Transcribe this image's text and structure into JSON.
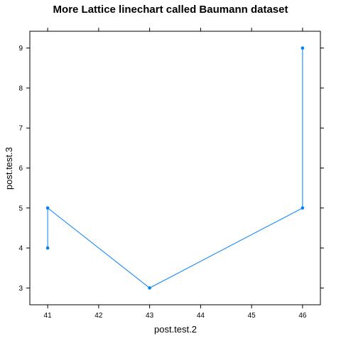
{
  "chart_data": {
    "type": "line",
    "title": "More Lattice linechart called Baumann dataset",
    "xlabel": "post.test.2",
    "ylabel": "post.test.3",
    "xlim": [
      40.65,
      46.35
    ],
    "ylim": [
      2.58,
      9.42
    ],
    "xticks": [
      41,
      42,
      43,
      44,
      45,
      46
    ],
    "yticks": [
      3,
      4,
      5,
      6,
      7,
      8,
      9
    ],
    "grid": false,
    "series": [
      {
        "color": "#0080ff",
        "points": [
          {
            "x": 41,
            "y": 4
          },
          {
            "x": 41,
            "y": 5
          },
          {
            "x": 43,
            "y": 3
          },
          {
            "x": 46,
            "y": 5
          },
          {
            "x": 46,
            "y": 9
          }
        ]
      }
    ]
  }
}
